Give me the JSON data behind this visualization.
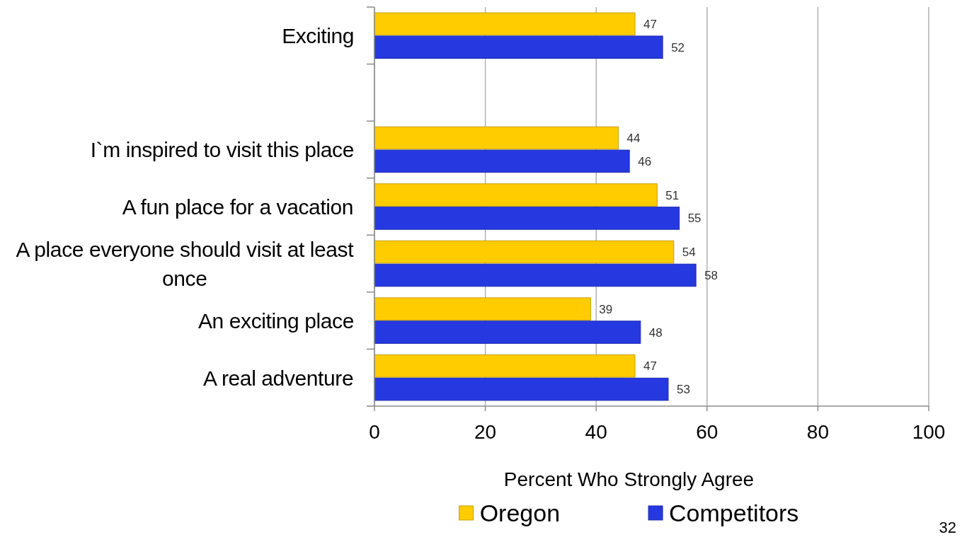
{
  "chart_data": {
    "type": "bar",
    "orientation": "horizontal",
    "categories": [
      "Exciting",
      null,
      "I`m inspired to visit this place",
      "A fun place for a vacation",
      "A place everyone should visit at least once",
      "An exciting place",
      "A real adventure"
    ],
    "series": [
      {
        "name": "Oregon",
        "color": "#ffcc00",
        "values": [
          47,
          null,
          44,
          51,
          54,
          39,
          47
        ]
      },
      {
        "name": "Competitors",
        "color": "#2638e0",
        "values": [
          52,
          null,
          46,
          55,
          58,
          48,
          53
        ]
      }
    ],
    "xlim": [
      0,
      100
    ],
    "xticks": [
      0,
      20,
      40,
      60,
      80,
      100
    ],
    "xlabel": "Percent Who Strongly Agree",
    "grid": "x",
    "legend": "bottom",
    "data_labels": true,
    "annotations": [
      "32"
    ]
  }
}
